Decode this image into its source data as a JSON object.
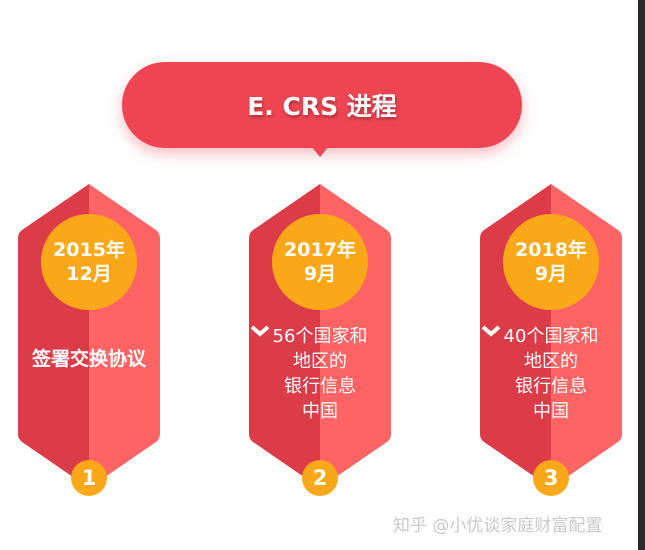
{
  "title": "E. CRS 进程",
  "colors": {
    "banner": "#ef4552",
    "card_left": "#dc3c47",
    "card_right": "#ff6464",
    "accent": "#fba818"
  },
  "steps": [
    {
      "number": "1",
      "date_line1": "2015年",
      "date_line2": "12月",
      "lines": [
        "签署交换协议"
      ],
      "target": ""
    },
    {
      "number": "2",
      "date_line1": "2017年",
      "date_line2": "9月",
      "lines": [
        "56个国家和",
        "地区的",
        "银行信息"
      ],
      "arrow_icon": "chevron-down-icon",
      "target": "中国"
    },
    {
      "number": "3",
      "date_line1": "2018年",
      "date_line2": "9月",
      "lines": [
        "40个国家和",
        "地区的",
        "银行信息"
      ],
      "arrow_icon": "chevron-down-icon",
      "target": "中国"
    }
  ],
  "watermark": "知乎 @小优谈家庭财富配置"
}
